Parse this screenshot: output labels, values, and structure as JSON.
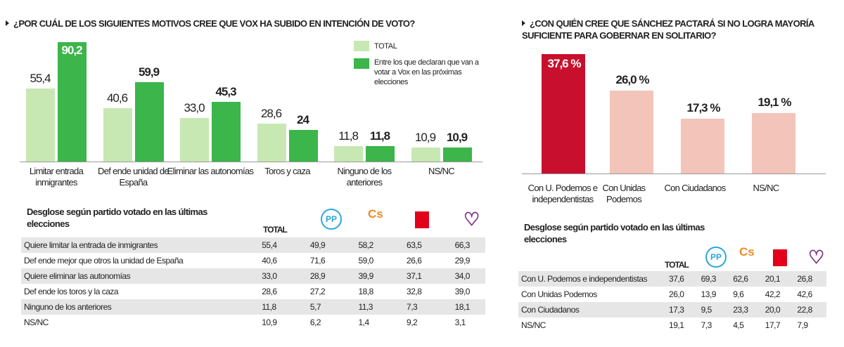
{
  "colors": {
    "total": "#c7e8b3",
    "vox": "#3cb54a",
    "highlight": "#c8102e",
    "pink": "#f3c4b9"
  },
  "chart_data": [
    {
      "type": "bar",
      "title": "¿POR CUÁL DE LOS SIGUIENTES MOTIVOS CREE QUE VOX HA SUBIDO EN INTENCIÓN DE VOTO?",
      "categories": [
        "Limitar entrada inmigrantes",
        "Def ende unidad de España",
        "Eliminar las autonomías",
        "Toros y caza",
        "Ninguno de los anteriores",
        "NS/NC"
      ],
      "series": [
        {
          "name": "TOTAL",
          "values": [
            55.4,
            40.6,
            33.0,
            28.6,
            11.8,
            10.9
          ],
          "labels": [
            "55,4",
            "40,6",
            "33,0",
            "28,6",
            "11,8",
            "10,9"
          ]
        },
        {
          "name": "Entre los que declaran que van a votar a Vox en las próximas elecciones",
          "values": [
            90.2,
            59.9,
            45.3,
            24,
            11.8,
            10.9
          ],
          "labels": [
            "90,2",
            "59,9",
            "45,3",
            "24",
            "11,8",
            "10,9"
          ]
        }
      ],
      "legend": "top-right",
      "grid": false
    },
    {
      "type": "bar",
      "title": "¿CON QUIÉN CREE QUE SÁNCHEZ PACTARÁ SI NO LOGRA MAYORÍA SUFICIENTE PARA GOBERNAR EN SOLITARIO?",
      "categories": [
        "Con U. Podemos e independentistas",
        "Con Unidas Podemos",
        "Con Ciudadanos",
        "NS/NC"
      ],
      "values": [
        37.6,
        26.0,
        17.3,
        19.1
      ],
      "labels": [
        "37,6 %",
        "26,0 %",
        "17,3 %",
        "19,1 %"
      ],
      "grid": false
    },
    {
      "type": "table",
      "title": "Desglose según partido votado en las últimas elecciones",
      "columns": [
        "TOTAL",
        "PP",
        "Cs",
        "PSOE",
        "Podemos"
      ],
      "rows": [
        [
          "Quiere limitar la entrada de inmigrantes",
          "55,4",
          "49,9",
          "58,2",
          "63,5",
          "66,3"
        ],
        [
          "Def ende mejor que otros la unidad de España",
          "40,6",
          "71,6",
          "59,0",
          "26,6",
          "29,9"
        ],
        [
          "Quiere eliminar las autonomías",
          "33,0",
          "28,9",
          "39,9",
          "37,1",
          "34,0"
        ],
        [
          "Def ende los toros y la caza",
          "28,6",
          "27,2",
          "18,8",
          "32,8",
          "39,0"
        ],
        [
          "Ninguno de los anteriores",
          "11,8",
          "5,7",
          "11,3",
          "7,3",
          "18,1"
        ],
        [
          "NS/NC",
          "10,9",
          "6,2",
          "1,4",
          "9,2",
          "3,1"
        ]
      ]
    },
    {
      "type": "table",
      "title": "Desglose según partido votado en las últimas elecciones",
      "columns": [
        "TOTAL",
        "PP",
        "Cs",
        "PSOE",
        "Podemos"
      ],
      "rows": [
        [
          "Con U. Podemos e independentistas",
          "37,6",
          "69,3",
          "62,6",
          "20,1",
          "26,8"
        ],
        [
          "Con Unidas Podemos",
          "26,0",
          "13,9",
          "9,6",
          "42,2",
          "42,6"
        ],
        [
          "Con Ciudadanos",
          "17,3",
          "9,5",
          "23,3",
          "20,0",
          "22,8"
        ],
        [
          "NS/NC",
          "19,1",
          "7,3",
          "4,5",
          "17,7",
          "7,9"
        ]
      ]
    }
  ],
  "logos": {
    "pp": "PP",
    "cs": "Cs"
  }
}
